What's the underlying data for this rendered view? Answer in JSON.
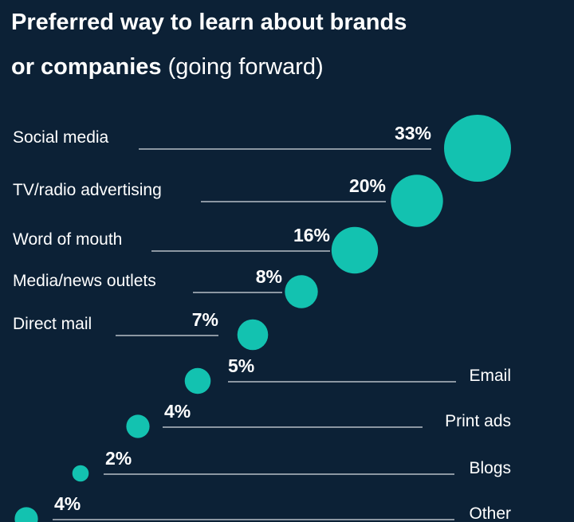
{
  "title": {
    "bold_line1": "Preferred way to learn about brands",
    "bold_line2": "or companies",
    "normal": "(going forward)"
  },
  "colors": {
    "background": "#0c2136",
    "bubble": "#13c2b0",
    "line": "#d9dee4",
    "text": "#ffffff"
  },
  "chart_data": {
    "type": "bubble",
    "unit": "%",
    "categories": [
      "Social media",
      "TV/radio advertising",
      "Word of mouth",
      "Media/news outlets",
      "Direct mail",
      "Email",
      "Print ads",
      "Blogs",
      "Other"
    ],
    "values": [
      33,
      20,
      16,
      8,
      7,
      5,
      4,
      2,
      4
    ],
    "value_labels": [
      "33%",
      "20%",
      "16%",
      "8%",
      "7%",
      "5%",
      "4%",
      "2%",
      "4%"
    ]
  }
}
